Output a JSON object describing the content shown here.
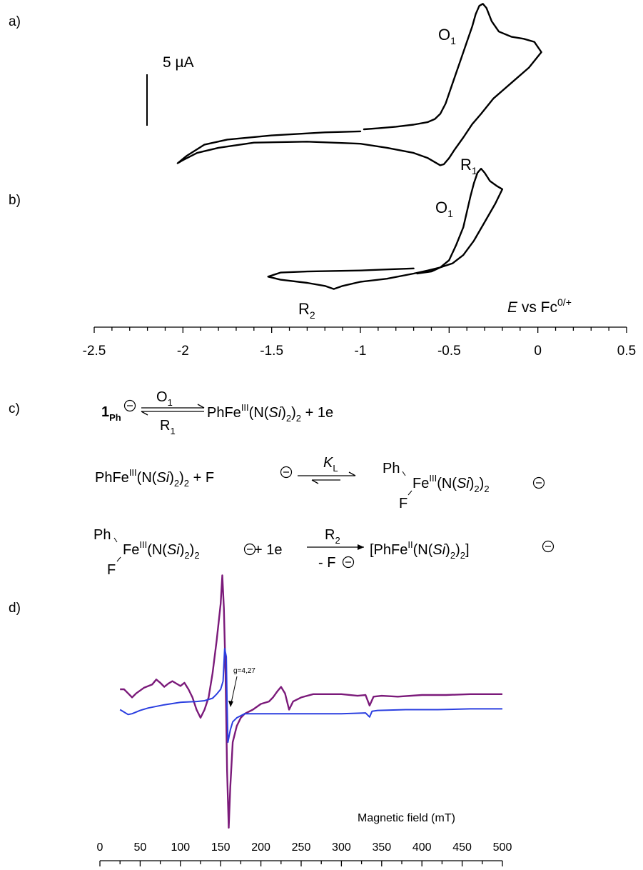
{
  "panels": {
    "a": "a)",
    "b": "b)",
    "c": "c)",
    "d": "d)"
  },
  "cv": {
    "scale_bar_label": "5 µA",
    "peak_labels": {
      "O": "O",
      "R": "R",
      "sub1": "1",
      "sub2": "2"
    },
    "axis_label": {
      "E": "E",
      "rest": " vs Fc",
      "sup": "0/+"
    }
  },
  "scheme": {
    "r1": {
      "left_bold": "1",
      "left_sub": "Ph",
      "over": "O",
      "over_sub": "1",
      "under": "R",
      "under_sub": "1",
      "right": "PhFe",
      "right_sup": "III",
      "right_a": "(N(",
      "right_si": "Si",
      "right_b": ")",
      "right_sub2": "2",
      "right_c": ")",
      "right_sub2b": "2",
      "right_end": " + 1e"
    },
    "r2": {
      "left": "PhFe",
      "left_sup": "III",
      "left_a": "(N(",
      "left_si": "Si",
      "left_b": ")",
      "left_sub2": "2",
      "left_c": ")",
      "left_sub2b": "2",
      "left_plus": " + F",
      "k": "K",
      "k_sub": "L",
      "prod_ph": "Ph",
      "prod_f": "F",
      "prod_fe": "Fe",
      "prod_sup": "III",
      "prod_a": "(N(",
      "prod_si": "Si",
      "prod_b": ")",
      "prod_sub2": "2",
      "prod_c": ")",
      "prod_sub2b": "2"
    },
    "r3": {
      "ph": "Ph",
      "f": "F",
      "fe": "Fe",
      "sup": "III",
      "a": "(N(",
      "si": "Si",
      "b": ")",
      "sub2": "2",
      "c": ")",
      "sub2b": "2",
      "plus": " + 1e",
      "over": "R",
      "over_sub": "2",
      "under": "- F",
      "prod_open": "[PhFe",
      "prod_sup": "II",
      "prod_a": "(N(",
      "prod_si": "Si",
      "prod_b": ")",
      "prod_sub2": "2",
      "prod_c": ")",
      "prod_sub2b": "2",
      "prod_close": "]"
    },
    "minus_sign": "−"
  },
  "epr": {
    "annotation": "g=4,27",
    "xlabel": "Magnetic field (mT)"
  },
  "colors": {
    "cv_trace": "#000000",
    "epr_purple": "#7b1a7a",
    "epr_blue": "#2b3fe0"
  },
  "chart_data": [
    {
      "type": "line",
      "panel": "a",
      "xlabel": "E vs Fc0/+",
      "xlim": [
        -2.5,
        0.5
      ],
      "scale_bar": "5 µA",
      "series": [
        {
          "name": "",
          "x": [
            -0.98,
            -0.9,
            -0.8,
            -0.7,
            -0.62,
            -0.58,
            -0.55,
            -0.52,
            -0.48,
            -0.44,
            -0.4,
            -0.37,
            -0.35,
            -0.33,
            -0.31,
            -0.29,
            -0.26,
            -0.22,
            -0.15,
            -0.08,
            -0.02,
            0.02,
            -0.05,
            -0.15,
            -0.25,
            -0.32,
            -0.37,
            -0.42,
            -0.47,
            -0.5,
            -0.53,
            -0.55,
            -0.58,
            -0.62,
            -0.7,
            -0.85,
            -1.0,
            -1.3,
            -1.6,
            -1.8,
            -1.92,
            -2.0,
            -2.03,
            -1.98,
            -1.88,
            -1.75,
            -1.5,
            -1.2,
            -1.0
          ],
          "y": [
            0.0,
            0.1,
            0.25,
            0.45,
            0.7,
            1.0,
            1.5,
            2.5,
            4.5,
            6.5,
            8.5,
            10.0,
            11.2,
            12.0,
            12.2,
            11.8,
            10.5,
            9.5,
            9.0,
            8.8,
            8.5,
            7.5,
            6.0,
            4.5,
            3.0,
            1.5,
            0.5,
            -0.8,
            -2.0,
            -2.8,
            -3.4,
            -3.5,
            -3.2,
            -2.8,
            -2.3,
            -1.8,
            -1.4,
            -1.2,
            -1.3,
            -1.8,
            -2.3,
            -3.0,
            -3.3,
            -2.6,
            -1.5,
            -1.0,
            -0.6,
            -0.3,
            -0.2
          ]
        }
      ]
    },
    {
      "type": "line",
      "panel": "b",
      "xlabel": "E vs Fc0/+",
      "xlim": [
        -2.5,
        0.5
      ],
      "ticks": [
        -2.5,
        -2,
        -1.5,
        -1,
        -0.5,
        0,
        0.5
      ],
      "series": [
        {
          "name": "",
          "x": [
            -0.68,
            -0.6,
            -0.55,
            -0.5,
            -0.46,
            -0.42,
            -0.4,
            -0.38,
            -0.36,
            -0.34,
            -0.32,
            -0.3,
            -0.27,
            -0.23,
            -0.2,
            -0.24,
            -0.3,
            -0.36,
            -0.42,
            -0.48,
            -0.55,
            -0.62,
            -0.7,
            -0.85,
            -1.0,
            -1.1,
            -1.15,
            -1.2,
            -1.3,
            -1.45,
            -1.52,
            -1.45,
            -1.3,
            -1.0,
            -0.85,
            -0.7
          ],
          "y": [
            0.0,
            0.2,
            0.6,
            1.3,
            2.8,
            4.5,
            6.0,
            7.5,
            8.8,
            9.8,
            10.2,
            9.8,
            9.0,
            8.5,
            8.2,
            6.8,
            5.0,
            3.2,
            1.8,
            1.0,
            0.6,
            0.3,
            0.0,
            -0.5,
            -0.8,
            -1.2,
            -1.5,
            -1.2,
            -0.9,
            -0.6,
            -0.3,
            0.1,
            0.2,
            0.3,
            0.4,
            0.5
          ]
        }
      ]
    },
    {
      "type": "line",
      "panel": "d",
      "xlabel": "Magnetic field (mT)",
      "xlim": [
        0,
        500
      ],
      "ticks": [
        0,
        50,
        100,
        150,
        200,
        250,
        300,
        350,
        400,
        450,
        500
      ],
      "annotation": "g=4,27",
      "series": [
        {
          "name": "",
          "color": "#7b1a7a",
          "x": [
            25,
            30,
            35,
            40,
            45,
            55,
            65,
            70,
            75,
            80,
            85,
            90,
            95,
            100,
            105,
            110,
            115,
            120,
            125,
            130,
            135,
            140,
            145,
            150,
            152,
            154,
            156,
            158,
            160,
            162,
            165,
            170,
            175,
            180,
            190,
            200,
            210,
            215,
            220,
            225,
            230,
            235,
            240,
            250,
            265,
            280,
            300,
            320,
            330,
            335,
            340,
            350,
            370,
            400,
            430,
            460,
            490,
            500
          ],
          "y": [
            0.0,
            0.0,
            -0.5,
            -1.0,
            -0.5,
            0.2,
            0.6,
            1.2,
            0.8,
            0.3,
            0.7,
            1.0,
            0.7,
            0.4,
            0.8,
            0.0,
            -1.0,
            -2.5,
            -3.5,
            -2.5,
            -1.0,
            2.0,
            6.0,
            10.5,
            14.0,
            10.0,
            2.0,
            -10.0,
            -17.0,
            -12.0,
            -6.5,
            -4.5,
            -3.5,
            -3.0,
            -2.5,
            -1.8,
            -1.5,
            -1.0,
            -0.3,
            0.3,
            -0.5,
            -2.5,
            -1.5,
            -1.0,
            -0.6,
            -0.6,
            -0.6,
            -0.8,
            -0.7,
            -2.0,
            -0.9,
            -0.8,
            -0.9,
            -0.7,
            -0.7,
            -0.6,
            -0.6,
            -0.6
          ]
        },
        {
          "name": "",
          "color": "#2b3fe0",
          "x": [
            25,
            30,
            35,
            40,
            50,
            60,
            80,
            100,
            120,
            130,
            140,
            145,
            150,
            153,
            155,
            157,
            158,
            159,
            160,
            162,
            165,
            170,
            180,
            200,
            230,
            260,
            300,
            330,
            335,
            338,
            345,
            380,
            420,
            460,
            500
          ],
          "y": [
            -2.5,
            -2.8,
            -3.1,
            -3.0,
            -2.6,
            -2.3,
            -1.9,
            -1.6,
            -1.5,
            -1.4,
            -1.1,
            -0.6,
            0.0,
            1.0,
            5.0,
            4.0,
            -2.0,
            -6.5,
            -6.0,
            -5.0,
            -4.0,
            -3.5,
            -3.0,
            -3.0,
            -3.0,
            -3.0,
            -3.0,
            -2.9,
            -3.4,
            -2.7,
            -2.6,
            -2.5,
            -2.5,
            -2.4,
            -2.4
          ]
        }
      ]
    }
  ]
}
